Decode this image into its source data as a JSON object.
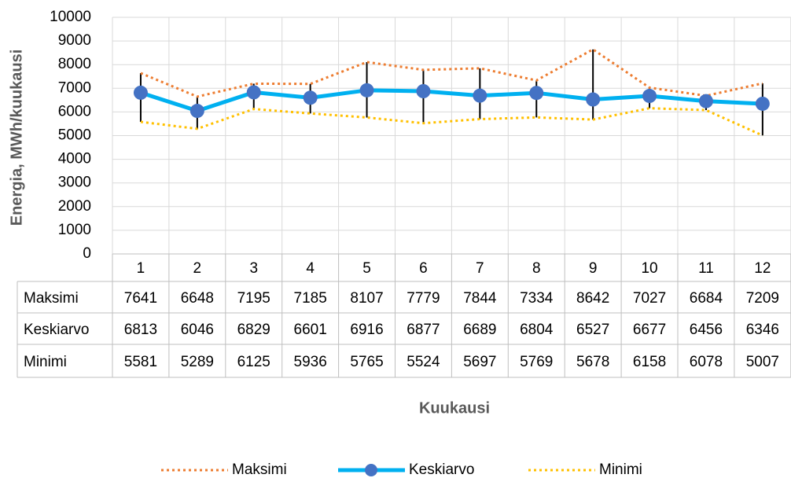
{
  "chart_data": {
    "type": "line",
    "y_label": "Energia, MWh/kuukausi",
    "x_label": "Kuukausi",
    "categories": [
      "1",
      "2",
      "3",
      "4",
      "5",
      "6",
      "7",
      "8",
      "9",
      "10",
      "11",
      "12"
    ],
    "series": [
      {
        "name": "Maksimi",
        "color": "#ed7d31",
        "style": "dotted",
        "values": [
          7641,
          6648,
          7195,
          7185,
          8107,
          7779,
          7844,
          7334,
          8642,
          7027,
          6684,
          7209
        ]
      },
      {
        "name": "Keskiarvo",
        "color": "#00b0f0",
        "marker_color": "#4472c4",
        "style": "solid",
        "values": [
          6813,
          6046,
          6829,
          6601,
          6916,
          6877,
          6689,
          6804,
          6527,
          6677,
          6456,
          6346
        ]
      },
      {
        "name": "Minimi",
        "color": "#ffc000",
        "style": "dotted",
        "values": [
          5581,
          5289,
          6125,
          5936,
          5765,
          5524,
          5697,
          5769,
          5678,
          6158,
          6078,
          5007
        ]
      }
    ],
    "ylim": [
      0,
      10000
    ],
    "yticks": [
      0,
      1000,
      2000,
      3000,
      4000,
      5000,
      6000,
      7000,
      8000,
      9000,
      10000
    ],
    "grid": true,
    "legend": "bottom",
    "data_table": true,
    "error_bars": "min-max"
  }
}
